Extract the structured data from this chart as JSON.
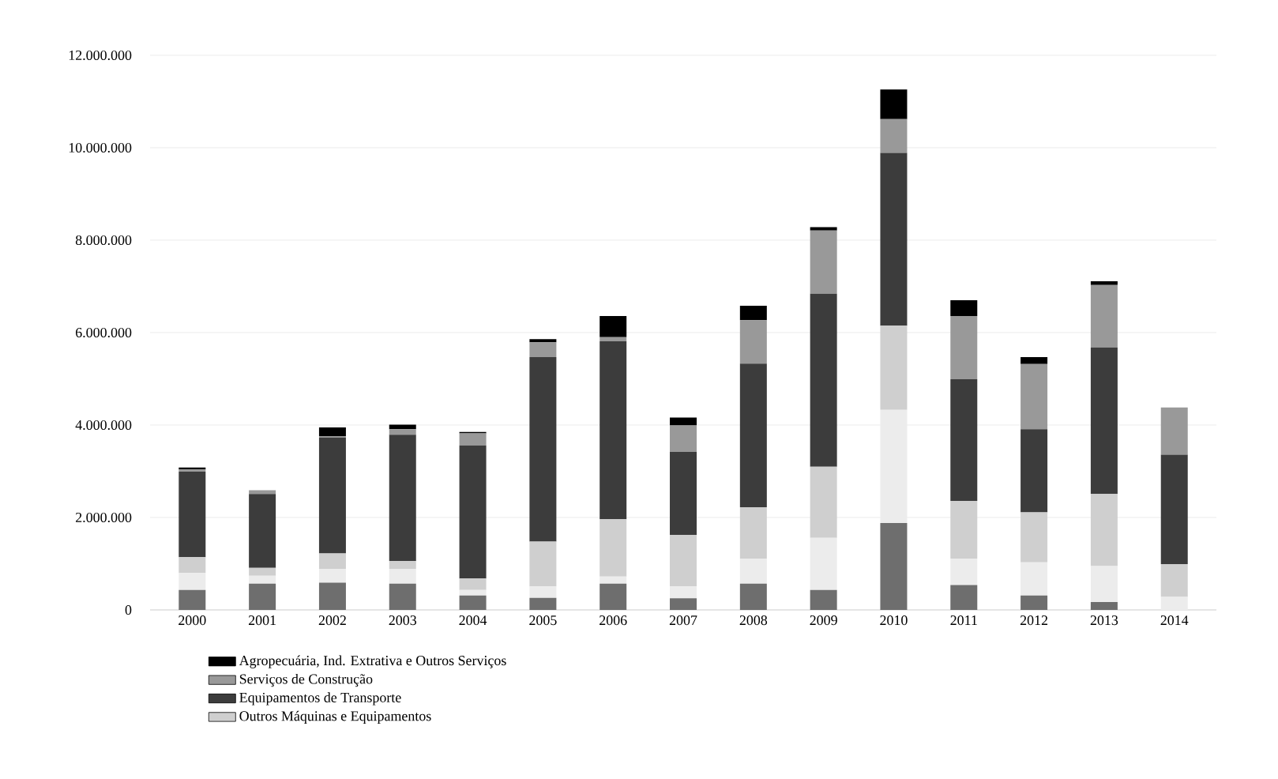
{
  "chart_data": {
    "type": "bar",
    "stacked": true,
    "categories": [
      "2000",
      "2001",
      "2002",
      "2003",
      "2004",
      "2005",
      "2006",
      "2007",
      "2008",
      "2009",
      "2010",
      "2011",
      "2012",
      "2013",
      "2014"
    ],
    "series": [
      {
        "color": "#6e6e6e",
        "values": [
          430000,
          570000,
          590000,
          570000,
          310000,
          260000,
          570000,
          250000,
          570000,
          430000,
          1880000,
          540000,
          310000,
          170000,
          0
        ]
      },
      {
        "color": "#ececec",
        "values": [
          370000,
          170000,
          300000,
          320000,
          120000,
          250000,
          150000,
          260000,
          540000,
          1130000,
          2450000,
          570000,
          720000,
          780000,
          280000
        ]
      },
      {
        "name": "Outros Máquinas e Equipamentos",
        "color": "#cfcfcf",
        "values": [
          340000,
          170000,
          330000,
          170000,
          250000,
          970000,
          1240000,
          1110000,
          1110000,
          1540000,
          1820000,
          1250000,
          1080000,
          1560000,
          710000
        ]
      },
      {
        "name": "Equipamentos de Transporte",
        "color": "#3c3c3c",
        "values": [
          1850000,
          1600000,
          2510000,
          2730000,
          2880000,
          3990000,
          3850000,
          1800000,
          3110000,
          3740000,
          3740000,
          2630000,
          1800000,
          3170000,
          2370000
        ]
      },
      {
        "name": "Serviços de Construção",
        "color": "#999999",
        "values": [
          50000,
          80000,
          30000,
          120000,
          260000,
          320000,
          90000,
          570000,
          940000,
          1370000,
          730000,
          1370000,
          1410000,
          1350000,
          1020000
        ]
      },
      {
        "name": "Agropecuária, Ind. Extrativa e Outros Serviços",
        "color": "#000000",
        "values": [
          40000,
          0,
          190000,
          100000,
          30000,
          70000,
          460000,
          170000,
          310000,
          70000,
          640000,
          340000,
          150000,
          80000,
          0
        ]
      }
    ],
    "ylim": [
      0,
      12000000
    ],
    "yticks": [
      {
        "value": 0,
        "label": "0"
      },
      {
        "value": 2000000,
        "label": "2.000.000"
      },
      {
        "value": 4000000,
        "label": "4.000.000"
      },
      {
        "value": 6000000,
        "label": "6.000.000"
      },
      {
        "value": 8000000,
        "label": "8.000.000"
      },
      {
        "value": 10000000,
        "label": "10.000.000"
      },
      {
        "value": 12000000,
        "label": "12.000.000"
      }
    ],
    "grid": "y",
    "legend": "bottom"
  }
}
